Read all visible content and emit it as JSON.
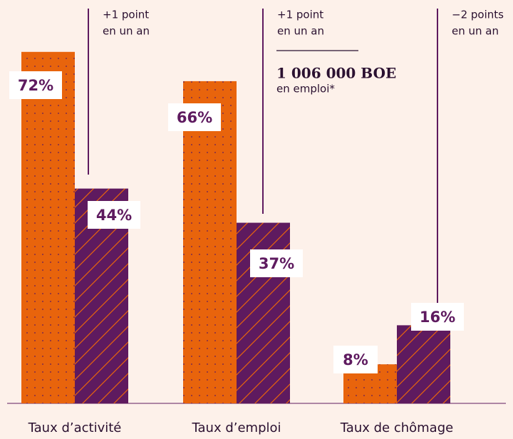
{
  "chart_data": {
    "type": "bar",
    "categories": [
      "Taux d’activité",
      "Taux d’emploi",
      "Taux de chômage"
    ],
    "series": [
      {
        "color": "#e8640c",
        "values": [
          72,
          66,
          8
        ],
        "value_labels": [
          "72%",
          "66%",
          "8%"
        ]
      },
      {
        "color": "#5e1a5f",
        "values": [
          44,
          37,
          16
        ],
        "value_labels": [
          "44%",
          "37%",
          "16%"
        ]
      }
    ],
    "annotations": [
      [
        "+1 point",
        "en un an"
      ],
      [
        "+1 point",
        "en un an"
      ],
      [
        "−2 points",
        "en un an"
      ]
    ],
    "highlight": {
      "value": "1 006 000 BOE",
      "label": "en emploi*"
    }
  }
}
